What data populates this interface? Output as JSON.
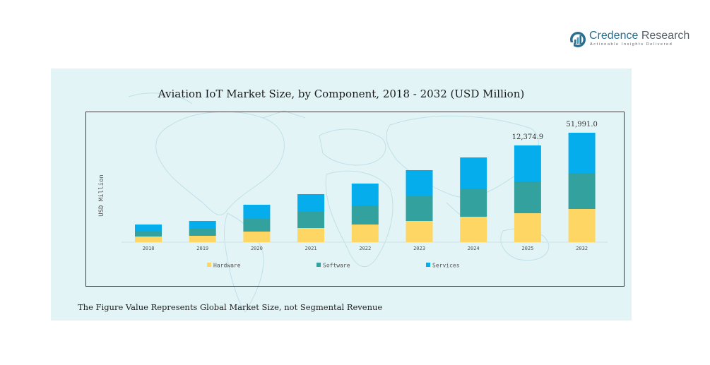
{
  "brand": {
    "name_part1": "Credence",
    "name_part2": " Research",
    "tagline": "Actionable Insights Delivered"
  },
  "colors": {
    "hardware": "#fdd664",
    "software": "#33a19e",
    "services": "#06aded",
    "panel_bg": "#e3f4f6"
  },
  "footnote": "The Figure Value Represents Global Market Size, not Segmental Revenue",
  "chart_data": {
    "type": "bar",
    "stacked": true,
    "title": "Aviation IoT Market Size, by Component, 2018 - 2032 (USD Million)",
    "xlabel": "",
    "ylabel": "USD Million",
    "categories": [
      "2018",
      "2019",
      "2020",
      "2021",
      "2022",
      "2023",
      "2024",
      "2025",
      "2032"
    ],
    "series": [
      {
        "name": "Hardware",
        "color": "#fdd664",
        "values": [
          722,
          813,
          1355,
          1806,
          2258,
          2710,
          3252,
          3703,
          15767
        ]
      },
      {
        "name": "Software",
        "color": "#33a19e",
        "values": [
          722,
          903,
          1626,
          2077,
          2439,
          3161,
          3613,
          4065,
          17110
        ]
      },
      {
        "name": "Services",
        "color": "#06aded",
        "values": [
          813,
          994,
          1806,
          2258,
          2800,
          3342,
          3974,
          4607,
          19114
        ]
      }
    ],
    "totals": [
      2257,
      2710,
      4787,
      6141,
      7497,
      9213,
      10839,
      12374.9,
      51991.0
    ],
    "data_labels": {
      "2025": "12,374.9",
      "2032": "51,991.0"
    },
    "legend": {
      "placement": "bottom",
      "entries": [
        "Hardware",
        "Software",
        "Services"
      ]
    },
    "grid": false,
    "notes": "Axis not linear between 2025 and 2032 in the source figure; bar heights track rendered proportions."
  }
}
